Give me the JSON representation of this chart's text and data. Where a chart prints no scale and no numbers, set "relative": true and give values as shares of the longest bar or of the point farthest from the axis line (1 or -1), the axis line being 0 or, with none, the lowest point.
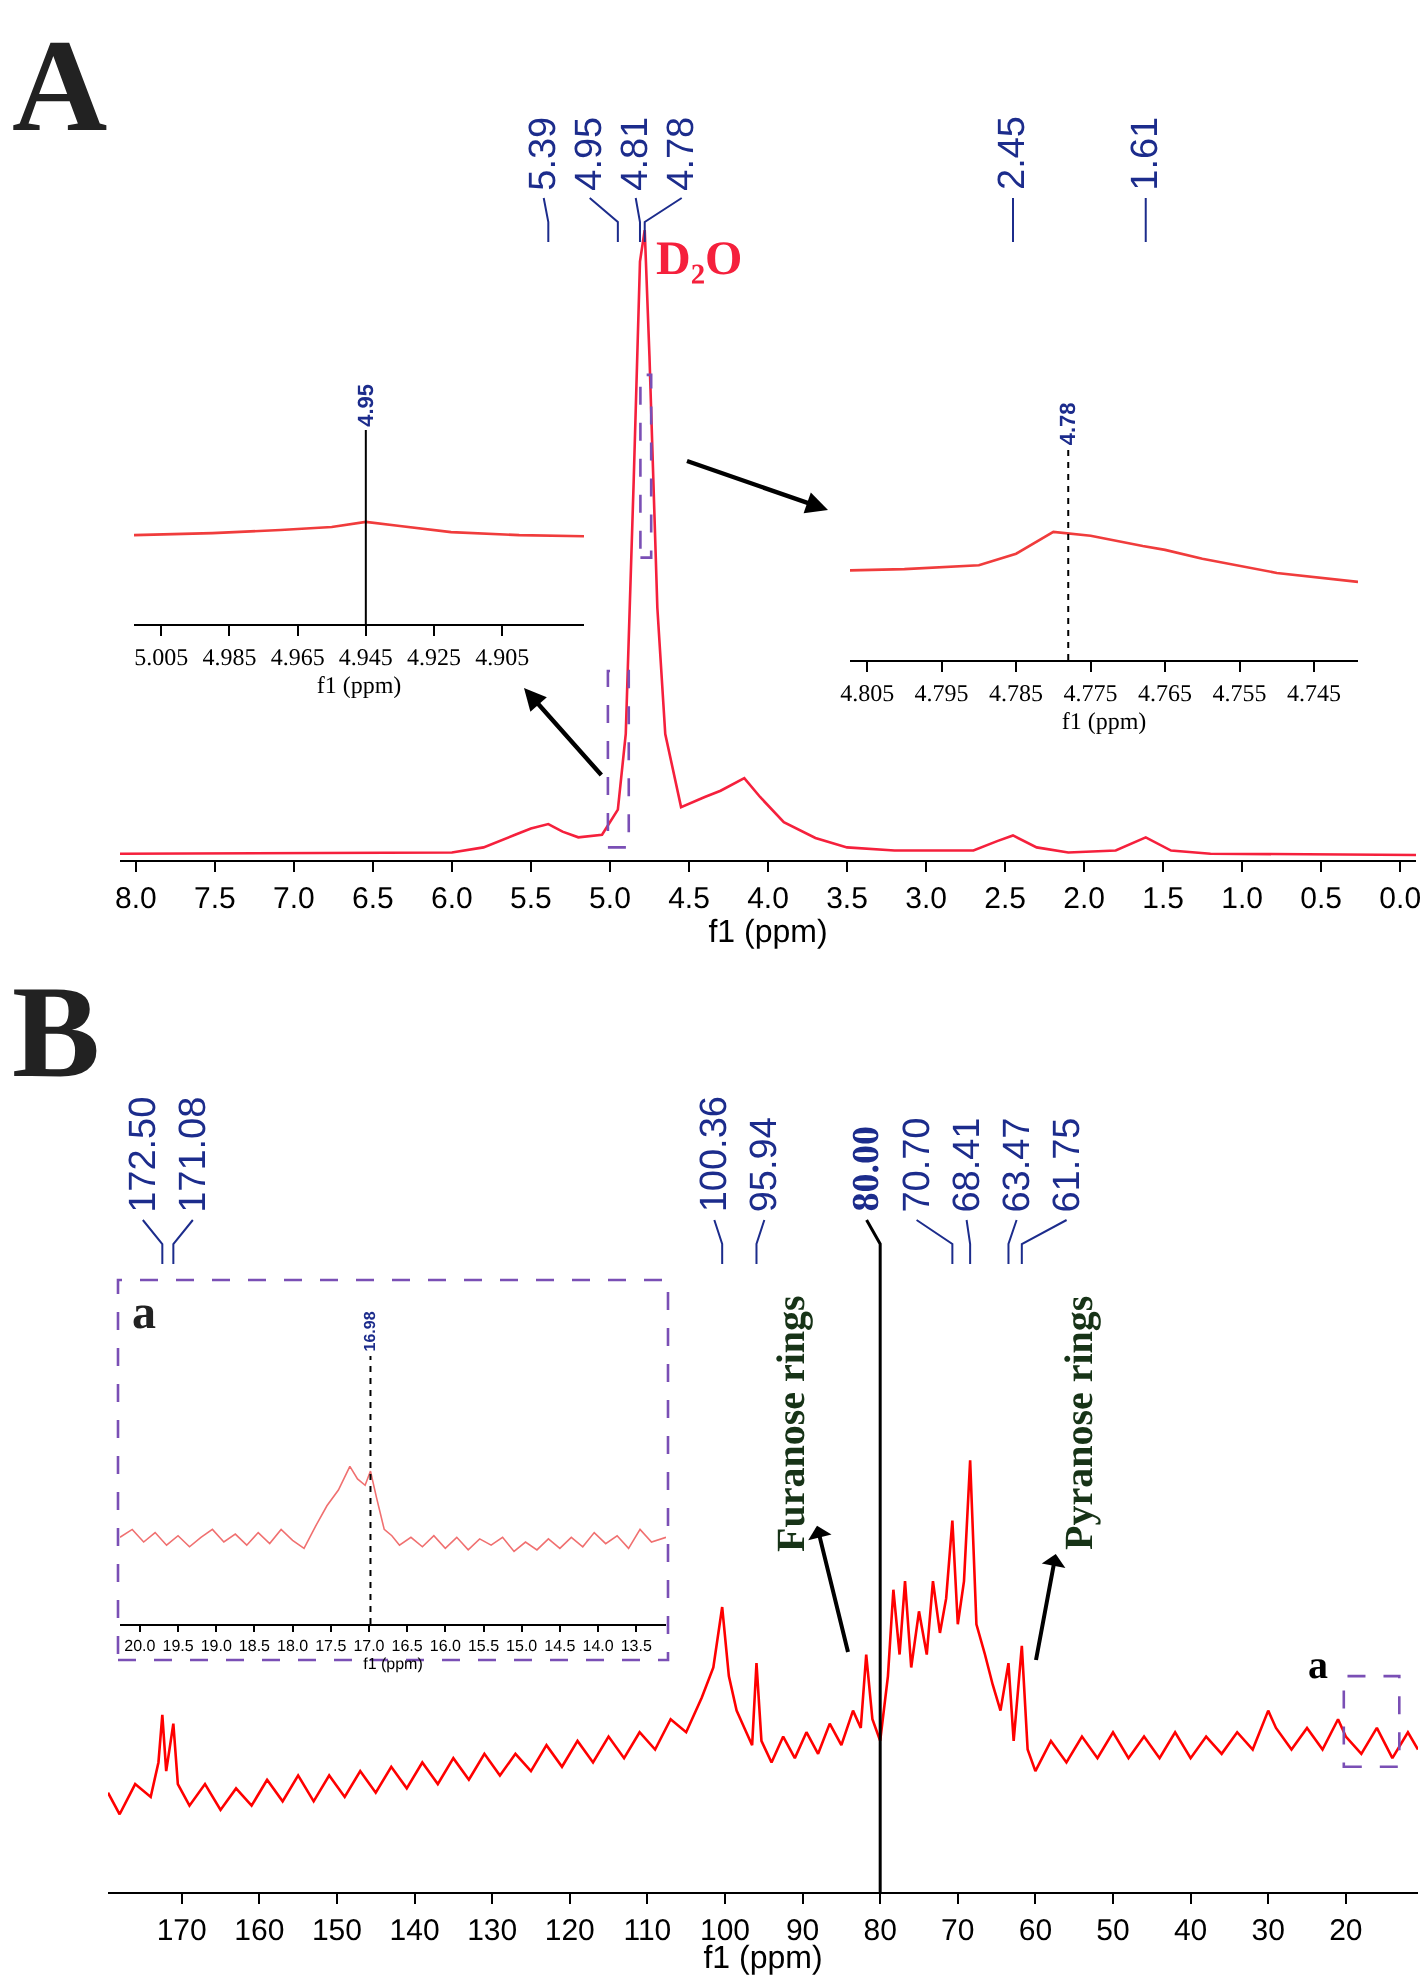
{
  "chart_data": [
    {
      "type": "line",
      "title": "A",
      "xlabel": "f1 (ppm)",
      "relative": true,
      "xlim": [
        8.1,
        -0.1
      ],
      "xticks": [
        {
          "value": 8,
          "label": "8.0"
        },
        7.5,
        {
          "value": 7,
          "label": "7.0"
        },
        6.5,
        {
          "value": 6,
          "label": "6.0"
        },
        5.5,
        {
          "value": 5,
          "label": "5.0"
        },
        4.5,
        {
          "value": 4,
          "label": "4.0"
        },
        3.5,
        {
          "value": 3,
          "label": "3.0"
        },
        2.5,
        {
          "value": 2,
          "label": "2.0"
        },
        1.5,
        {
          "value": 1,
          "label": "1.0"
        },
        0.5,
        {
          "value": 0,
          "label": "0.0"
        }
      ],
      "x": [
        8.1,
        6.0,
        5.8,
        5.6,
        5.5,
        5.39,
        5.3,
        5.2,
        5.05,
        4.95,
        4.9,
        4.85,
        4.81,
        4.78,
        4.75,
        4.7,
        4.65,
        4.55,
        4.4,
        4.3,
        4.15,
        4.05,
        3.9,
        3.7,
        3.5,
        3.2,
        2.7,
        2.55,
        2.45,
        2.3,
        2.1,
        1.8,
        1.61,
        1.45,
        1.2,
        -0.1
      ],
      "series": [
        {
          "color": "#f5203c",
          "values": [
            0.01,
            0.012,
            0.02,
            0.04,
            0.05,
            0.057,
            0.045,
            0.036,
            0.04,
            0.08,
            0.2,
            0.6,
            0.95,
            1.0,
            0.8,
            0.4,
            0.2,
            0.084,
            0.1,
            0.11,
            0.13,
            0.1,
            0.06,
            0.035,
            0.02,
            0.015,
            0.015,
            0.03,
            0.039,
            0.02,
            0.012,
            0.015,
            0.036,
            0.015,
            0.01,
            0.008
          ]
        }
      ],
      "ref_lines": [
        {
          "axis": "x",
          "value": 5.39,
          "label": "5.39",
          "color": "#1c2c8c"
        },
        {
          "axis": "x",
          "value": 4.95,
          "label": "4.95",
          "color": "#1c2c8c"
        },
        {
          "axis": "x",
          "value": 4.81,
          "label": "4.81",
          "color": "#1c2c8c"
        },
        {
          "axis": "x",
          "value": 4.78,
          "label": "4.78",
          "color": "#1c2c8c"
        },
        {
          "axis": "x",
          "value": 2.45,
          "label": "2.45",
          "color": "#1c2c8c"
        },
        {
          "axis": "x",
          "value": 1.61,
          "label": "1.61",
          "color": "#1c2c8c"
        }
      ],
      "annotations": [
        {
          "text": "D₂O",
          "x": 4.78,
          "y": 1.0
        }
      ]
    },
    {
      "type": "line",
      "xlabel": "f1 (ppm)",
      "relative": true,
      "xlim": [
        5.013,
        4.881
      ],
      "xticks": [
        5.005,
        4.985,
        4.965,
        4.945,
        4.925,
        4.905
      ],
      "x": [
        5.013,
        4.99,
        4.97,
        4.955,
        4.945,
        4.935,
        4.92,
        4.9,
        4.881
      ],
      "series": [
        {
          "color": "#f03c3c",
          "values": [
            0.87,
            0.89,
            0.92,
            0.95,
            1.0,
            0.96,
            0.9,
            0.87,
            0.86
          ]
        }
      ],
      "ref_lines": [
        {
          "axis": "x",
          "value": 4.945,
          "label": "4.95",
          "color": "#000000"
        }
      ]
    },
    {
      "type": "line",
      "xlabel": "f1 (ppm)",
      "relative": true,
      "xlim": [
        4.8073,
        4.7391
      ],
      "xticks": [
        4.805,
        4.795,
        4.785,
        4.775,
        4.765,
        4.755,
        4.745
      ],
      "x": [
        4.8073,
        4.8,
        4.79,
        4.785,
        4.78,
        4.775,
        4.768,
        4.765,
        4.76,
        4.75,
        4.7391
      ],
      "series": [
        {
          "color": "#f03c3c",
          "values": [
            0.7,
            0.71,
            0.74,
            0.83,
            1.0,
            0.97,
            0.89,
            0.86,
            0.79,
            0.68,
            0.61
          ]
        }
      ],
      "ref_lines": [
        {
          "axis": "x",
          "value": 4.778,
          "label": "4.78",
          "color": "#000000",
          "line_style": "dotted"
        }
      ]
    },
    {
      "type": "line",
      "title": "B",
      "xlabel": "f1 (ppm)",
      "relative": true,
      "xlim": [
        179.5,
        10.7
      ],
      "xticks": [
        170,
        160,
        150,
        140,
        130,
        120,
        110,
        100,
        90,
        80,
        70,
        60,
        50,
        40,
        30,
        20
      ],
      "x": [
        179.5,
        178,
        176,
        174,
        173,
        172.5,
        172,
        171.08,
        170.5,
        169,
        167,
        165,
        163,
        161,
        159,
        157,
        155,
        153,
        151,
        149,
        147,
        145,
        143,
        141,
        139,
        137,
        135,
        133,
        131,
        129,
        127,
        125,
        123,
        121,
        119,
        117,
        115,
        113,
        111,
        109,
        107,
        105,
        103,
        101.5,
        100.36,
        99.5,
        98.5,
        97.5,
        96.5,
        95.94,
        95.3,
        94,
        92.5,
        91,
        89.5,
        88,
        86.5,
        85,
        83.5,
        82.5,
        81.8,
        81,
        80,
        79,
        78.3,
        77.5,
        76.8,
        76,
        75,
        74,
        73.2,
        72.3,
        71.5,
        70.7,
        70,
        69.2,
        68.41,
        67.6,
        66.5,
        65.5,
        64.5,
        63.47,
        62.8,
        61.75,
        61,
        60,
        58,
        56,
        54,
        52,
        50,
        48,
        46,
        44,
        42,
        40,
        38,
        36,
        34,
        32,
        30,
        29,
        27,
        25,
        23,
        21,
        20,
        18,
        16,
        14,
        12,
        10.7
      ],
      "series": [
        {
          "color": "#ff0000",
          "values": [
            0.23,
            0.18,
            0.25,
            0.22,
            0.3,
            0.41,
            0.28,
            0.39,
            0.25,
            0.2,
            0.25,
            0.19,
            0.24,
            0.2,
            0.26,
            0.21,
            0.27,
            0.21,
            0.27,
            0.22,
            0.28,
            0.23,
            0.29,
            0.24,
            0.3,
            0.25,
            0.31,
            0.26,
            0.32,
            0.27,
            0.32,
            0.28,
            0.34,
            0.29,
            0.35,
            0.3,
            0.36,
            0.31,
            0.37,
            0.33,
            0.4,
            0.37,
            0.45,
            0.52,
            0.66,
            0.5,
            0.42,
            0.38,
            0.34,
            0.53,
            0.35,
            0.3,
            0.36,
            0.31,
            0.37,
            0.32,
            0.39,
            0.34,
            0.42,
            0.38,
            0.55,
            0.4,
            0.35,
            0.5,
            0.7,
            0.55,
            0.72,
            0.52,
            0.65,
            0.55,
            0.72,
            0.6,
            0.68,
            0.86,
            0.62,
            0.72,
            1.0,
            0.62,
            0.55,
            0.48,
            0.42,
            0.53,
            0.35,
            0.57,
            0.33,
            0.28,
            0.35,
            0.3,
            0.36,
            0.31,
            0.37,
            0.31,
            0.36,
            0.31,
            0.37,
            0.31,
            0.36,
            0.32,
            0.37,
            0.33,
            0.42,
            0.38,
            0.33,
            0.38,
            0.33,
            0.4,
            0.36,
            0.32,
            0.38,
            0.31,
            0.37,
            0.33
          ]
        }
      ],
      "ref_lines": [
        {
          "axis": "x",
          "value": 172.5,
          "label": "172.50",
          "color": "#1c2c8c"
        },
        {
          "axis": "x",
          "value": 171.08,
          "label": "171.08",
          "color": "#1c2c8c"
        },
        {
          "axis": "x",
          "value": 100.36,
          "label": "100.36",
          "color": "#1c2c8c"
        },
        {
          "axis": "x",
          "value": 95.94,
          "label": "95.94",
          "color": "#1c2c8c"
        },
        {
          "axis": "x",
          "value": 80,
          "label": "80.00",
          "color": "#000000",
          "line_style": "solid"
        },
        {
          "axis": "x",
          "value": 70.7,
          "label": "70.70",
          "color": "#1c2c8c"
        },
        {
          "axis": "x",
          "value": 68.41,
          "label": "68.41",
          "color": "#1c2c8c"
        },
        {
          "axis": "x",
          "value": 63.47,
          "label": "63.47",
          "color": "#1c2c8c"
        },
        {
          "axis": "x",
          "value": 61.75,
          "label": "61.75",
          "color": "#1c2c8c"
        }
      ],
      "annotations": [
        "Furanose rings",
        "Pyranose rings",
        "a"
      ]
    },
    {
      "type": "line",
      "title": "a",
      "xlabel": "f1 (ppm)",
      "relative": true,
      "xlim": [
        20.26,
        13.11
      ],
      "xticks": [
        {
          "value": 20,
          "label": "20.0"
        },
        19.5,
        {
          "value": 19,
          "label": "19.0"
        },
        18.5,
        {
          "value": 18,
          "label": "18.0"
        },
        17.5,
        {
          "value": 17,
          "label": "17.0"
        },
        16.5,
        {
          "value": 16,
          "label": "16.0"
        },
        15.5,
        {
          "value": 15,
          "label": "15.0"
        },
        14.5,
        {
          "value": 14,
          "label": "14.0"
        },
        13.5
      ],
      "x": [
        20.26,
        20.1,
        19.95,
        19.8,
        19.65,
        19.5,
        19.35,
        19.2,
        19.05,
        18.9,
        18.75,
        18.6,
        18.45,
        18.3,
        18.15,
        18.0,
        17.85,
        17.7,
        17.55,
        17.4,
        17.25,
        17.15,
        17.05,
        16.98,
        16.9,
        16.8,
        16.7,
        16.6,
        16.45,
        16.3,
        16.15,
        16.0,
        15.85,
        15.7,
        15.55,
        15.4,
        15.25,
        15.1,
        14.95,
        14.8,
        14.65,
        14.5,
        14.35,
        14.2,
        14.05,
        13.9,
        13.75,
        13.6,
        13.45,
        13.3,
        13.11
      ],
      "series": [
        {
          "color": "#f07070",
          "values": [
            0.55,
            0.6,
            0.52,
            0.58,
            0.5,
            0.56,
            0.49,
            0.55,
            0.6,
            0.52,
            0.57,
            0.5,
            0.58,
            0.51,
            0.6,
            0.53,
            0.48,
            0.62,
            0.75,
            0.85,
            1.0,
            0.92,
            0.88,
            0.97,
            0.8,
            0.6,
            0.56,
            0.5,
            0.55,
            0.49,
            0.56,
            0.48,
            0.55,
            0.47,
            0.54,
            0.5,
            0.55,
            0.46,
            0.52,
            0.47,
            0.54,
            0.48,
            0.55,
            0.49,
            0.58,
            0.51,
            0.56,
            0.48,
            0.6,
            0.52,
            0.55
          ]
        }
      ],
      "ref_lines": [
        {
          "axis": "x",
          "value": 16.98,
          "label": "16.98",
          "color": "#000000",
          "line_style": "dotted"
        }
      ]
    }
  ]
}
